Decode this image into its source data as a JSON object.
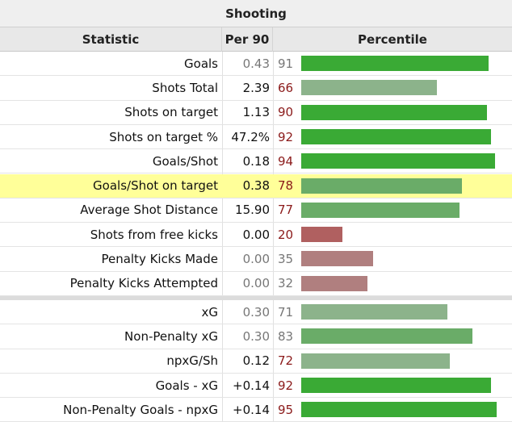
{
  "caption": "Shooting",
  "headers": {
    "statistic": "Statistic",
    "per90": "Per 90",
    "percentile": "Percentile"
  },
  "colors": {
    "bar_high": "#3aaa35",
    "bar_mid": "#6aac68",
    "bar_low_mid": "#8cb38b",
    "bar_low": "#b07f7f",
    "bar_very_low": "#b06060",
    "text_dark_red": "#8b1a1a",
    "text_grey": "#777777"
  },
  "chart_data": {
    "type": "bar",
    "orientation": "horizontal",
    "xlim": [
      0,
      100
    ],
    "groups": [
      [
        {
          "stat": "Goals",
          "per90": "0.43",
          "percentile": 91,
          "per90_muted": true,
          "pct_muted": true
        },
        {
          "stat": "Shots Total",
          "per90": "2.39",
          "percentile": 66
        },
        {
          "stat": "Shots on target",
          "per90": "1.13",
          "percentile": 90
        },
        {
          "stat": "Shots on target %",
          "per90": "47.2%",
          "percentile": 92
        },
        {
          "stat": "Goals/Shot",
          "per90": "0.18",
          "percentile": 94
        },
        {
          "stat": "Goals/Shot on target",
          "per90": "0.38",
          "percentile": 78,
          "highlight": true
        },
        {
          "stat": "Average Shot Distance",
          "per90": "15.90",
          "percentile": 77
        },
        {
          "stat": "Shots from free kicks",
          "per90": "0.00",
          "percentile": 20
        },
        {
          "stat": "Penalty Kicks Made",
          "per90": "0.00",
          "percentile": 35,
          "per90_muted": true,
          "pct_muted": true
        },
        {
          "stat": "Penalty Kicks Attempted",
          "per90": "0.00",
          "percentile": 32,
          "per90_muted": true,
          "pct_muted": true
        }
      ],
      [
        {
          "stat": "xG",
          "per90": "0.30",
          "percentile": 71,
          "per90_muted": true,
          "pct_muted": true
        },
        {
          "stat": "Non-Penalty xG",
          "per90": "0.30",
          "percentile": 83,
          "per90_muted": true,
          "pct_muted": true
        },
        {
          "stat": "npxG/Sh",
          "per90": "0.12",
          "percentile": 72
        },
        {
          "stat": "Goals - xG",
          "per90": "+0.14",
          "percentile": 92
        },
        {
          "stat": "Non-Penalty Goals - npxG",
          "per90": "+0.14",
          "percentile": 95
        }
      ]
    ]
  }
}
